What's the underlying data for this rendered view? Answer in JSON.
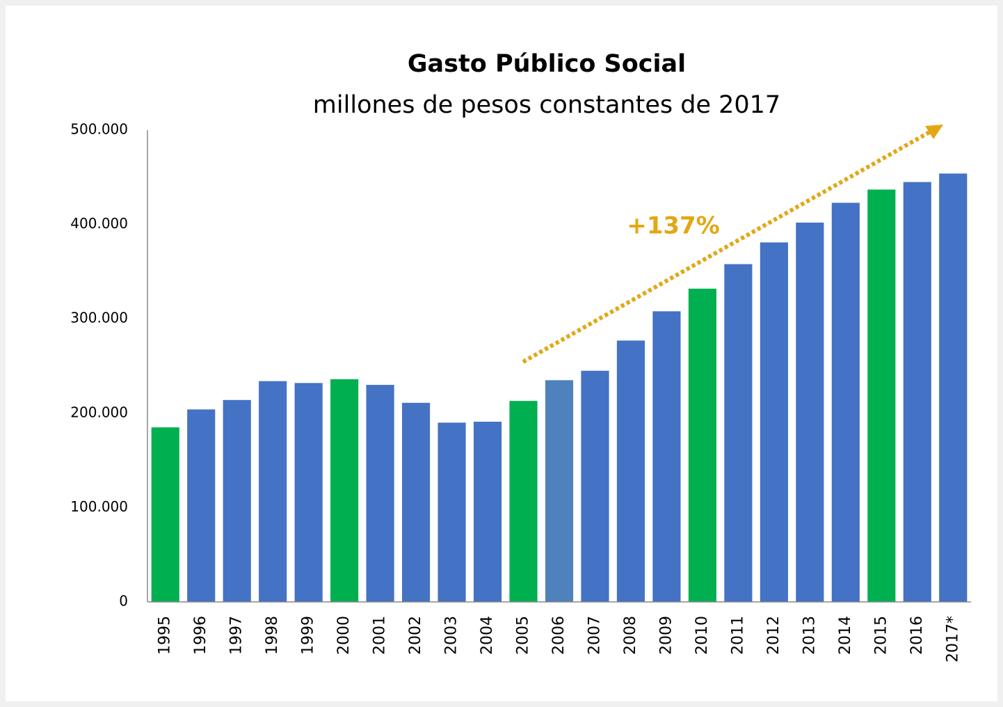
{
  "chart_data": {
    "type": "bar",
    "title": "Gasto Público Social",
    "subtitle": "millones de pesos constantes de 2017",
    "annotation": "+137%",
    "categories": [
      "1995",
      "1996",
      "1997",
      "1998",
      "1999",
      "2000",
      "2001",
      "2002",
      "2003",
      "2004",
      "2005",
      "2006",
      "2007",
      "2008",
      "2009",
      "2010",
      "2011",
      "2012",
      "2013",
      "2014",
      "2015",
      "2016",
      "2017*"
    ],
    "values": [
      185000,
      204000,
      214000,
      234000,
      232000,
      236000,
      230000,
      211000,
      190000,
      191000,
      213000,
      235000,
      245000,
      277000,
      308000,
      332000,
      358000,
      381000,
      402000,
      423000,
      437000,
      445000,
      454000
    ],
    "colors": [
      "#00b050",
      "#4472c4",
      "#4472c4",
      "#4472c4",
      "#4472c4",
      "#00b050",
      "#4472c4",
      "#4472c4",
      "#4472c4",
      "#4472c4",
      "#00b050",
      "#4f81bd",
      "#4472c4",
      "#4472c4",
      "#4472c4",
      "#00b050",
      "#4472c4",
      "#4472c4",
      "#4472c4",
      "#4472c4",
      "#00b050",
      "#4472c4",
      "#4472c4"
    ],
    "ylim": [
      0,
      500000
    ],
    "yticks": [
      0,
      {
        "value": 100000,
        "label": "100.000"
      },
      {
        "value": 200000,
        "label": "200.000"
      },
      {
        "value": 300000,
        "label": "300.000"
      },
      {
        "value": 400000,
        "label": "400.000"
      },
      {
        "value": 500000,
        "label": "500.000"
      }
    ],
    "grid": false
  }
}
